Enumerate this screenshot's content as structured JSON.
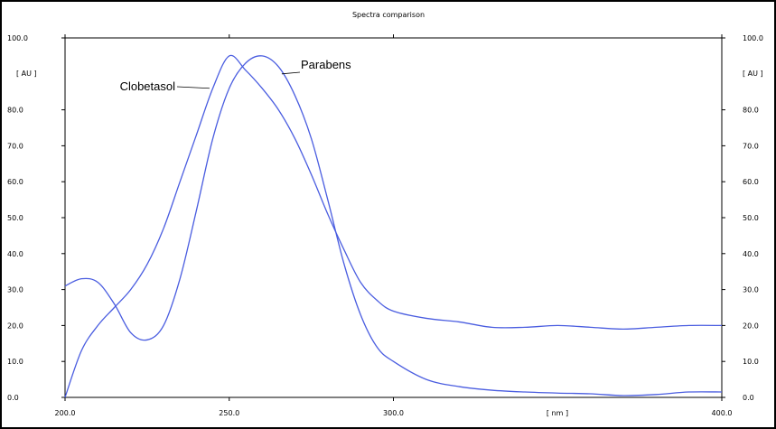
{
  "chart_data": {
    "type": "line",
    "title": "Spectra comparison",
    "xlabel": "[ nm ]",
    "ylabel_left": "[ AU ]",
    "ylabel_right": "[ AU ]",
    "xlim": [
      200,
      400
    ],
    "ylim": [
      0,
      100
    ],
    "x_ticks": [
      "200.0",
      "250.0",
      "300.0",
      "400.0"
    ],
    "y_ticks": [
      "0.0",
      "10.0",
      "20.0",
      "30.0",
      "40.0",
      "50.0",
      "60.0",
      "70.0",
      "80.0",
      "100.0"
    ],
    "grid": false,
    "line_color": "#4a5de0",
    "series": [
      {
        "name": "Clobetasol",
        "x": [
          200,
          205,
          210,
          215,
          220,
          225,
          230,
          235,
          240,
          245,
          250,
          255,
          260,
          265,
          270,
          275,
          280,
          285,
          290,
          295,
          300,
          310,
          320,
          330,
          340,
          350,
          360,
          370,
          380,
          390,
          400
        ],
        "y": [
          0,
          13,
          20,
          25,
          30,
          37,
          47,
          60,
          73,
          86,
          95,
          91,
          86,
          80,
          72,
          62,
          51,
          41,
          32,
          27,
          24,
          22,
          21,
          19.5,
          19.5,
          20,
          19.5,
          19,
          19.5,
          20,
          20
        ]
      },
      {
        "name": "Parabens",
        "x": [
          200,
          205,
          210,
          215,
          220,
          225,
          230,
          235,
          240,
          245,
          250,
          255,
          260,
          265,
          270,
          275,
          280,
          285,
          290,
          295,
          300,
          310,
          320,
          330,
          340,
          350,
          360,
          370,
          380,
          390,
          400
        ],
        "y": [
          31,
          33,
          32,
          26,
          18,
          16,
          20,
          33,
          52,
          72,
          86,
          93,
          95,
          92,
          84,
          72,
          55,
          37,
          23,
          14,
          10,
          5,
          3,
          2,
          1.5,
          1.2,
          1,
          0.5,
          0.8,
          1.5,
          1.5
        ]
      }
    ],
    "annotations": [
      {
        "text": "Clobetasol",
        "series": "Clobetasol"
      },
      {
        "text": "Parabens",
        "series": "Parabens"
      }
    ]
  }
}
